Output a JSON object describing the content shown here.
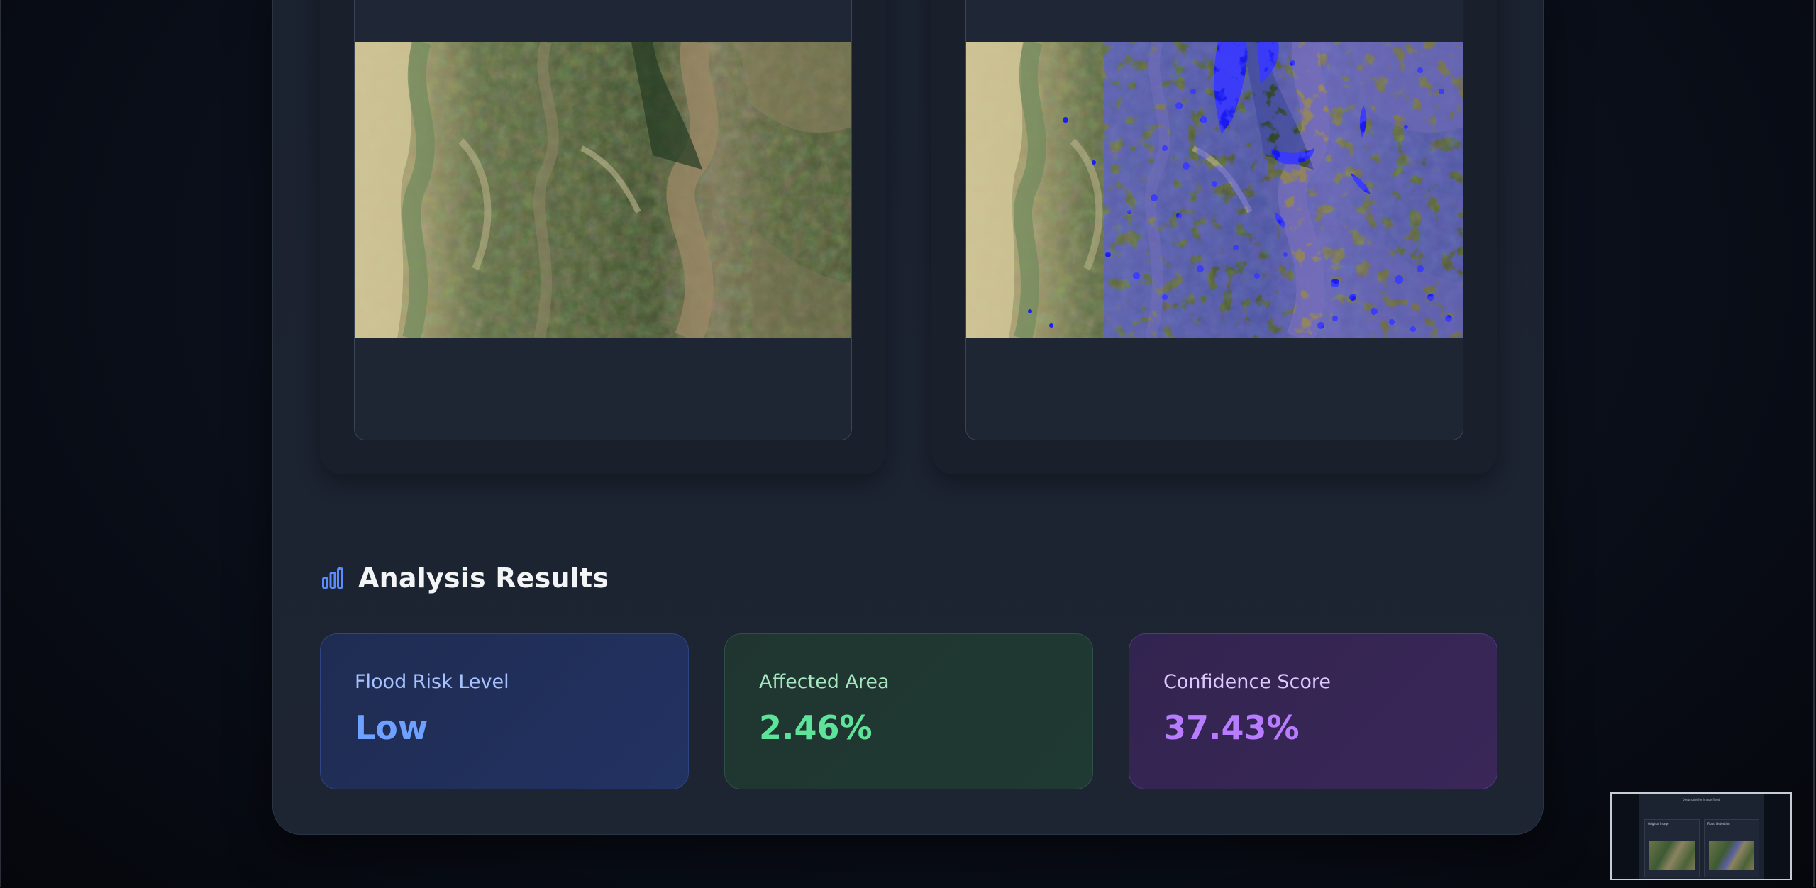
{
  "analysis": {
    "title": "Analysis Results",
    "icon": "bar-chart-icon"
  },
  "stats": [
    {
      "label": "Flood Risk Level",
      "value": "Low",
      "color": "#6ea1ff"
    },
    {
      "label": "Affected Area",
      "value": "2.46%",
      "color": "#5ee39a"
    },
    {
      "label": "Confidence Score",
      "value": "37.43%",
      "color": "#b87cff"
    }
  ],
  "images": {
    "original": {
      "icon": "satellite-image"
    },
    "detection": {
      "icon": "satellite-image-with-flood-overlay",
      "overlay_color": "#1a1aff"
    }
  },
  "minimap": {
    "title": "Deep satellite image flood",
    "panel_left": "Original Image",
    "panel_right": "Flood Detection"
  }
}
